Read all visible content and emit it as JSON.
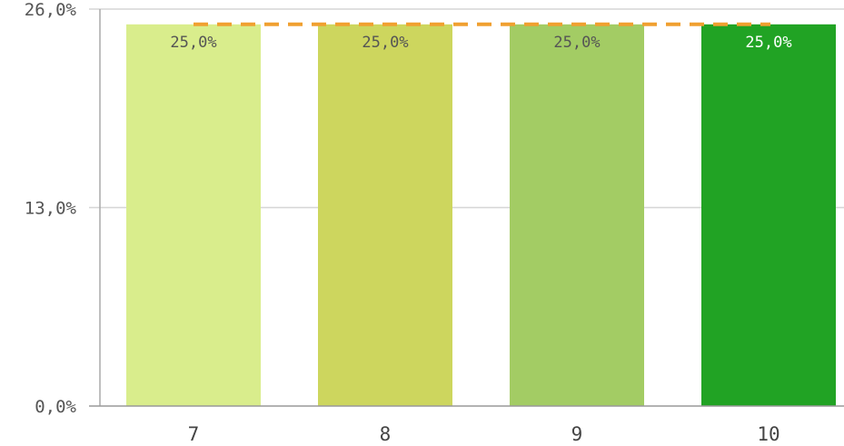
{
  "chart_data": {
    "type": "bar",
    "categories": [
      "7",
      "8",
      "9",
      "10"
    ],
    "values": [
      25.0,
      25.0,
      25.0,
      25.0
    ],
    "data_labels": [
      "25,0%",
      "25,0%",
      "25,0%",
      "25,0%"
    ],
    "bar_colors": [
      "#d9ed8c",
      "#cdd65e",
      "#a3cc64",
      "#21a324"
    ],
    "data_label_colors": [
      "#555555",
      "#555555",
      "#555555",
      "#ffffff"
    ],
    "y_ticks": [
      {
        "value": 0,
        "label": "0,0%"
      },
      {
        "value": 13,
        "label": "13,0%"
      },
      {
        "value": 26,
        "label": "26,0%"
      }
    ],
    "ylim": [
      0,
      26
    ],
    "grid": true,
    "reference_line": {
      "value": 25.0,
      "style": "dashed",
      "color": "#f0a030"
    },
    "title": "",
    "xlabel": "",
    "ylabel": ""
  }
}
